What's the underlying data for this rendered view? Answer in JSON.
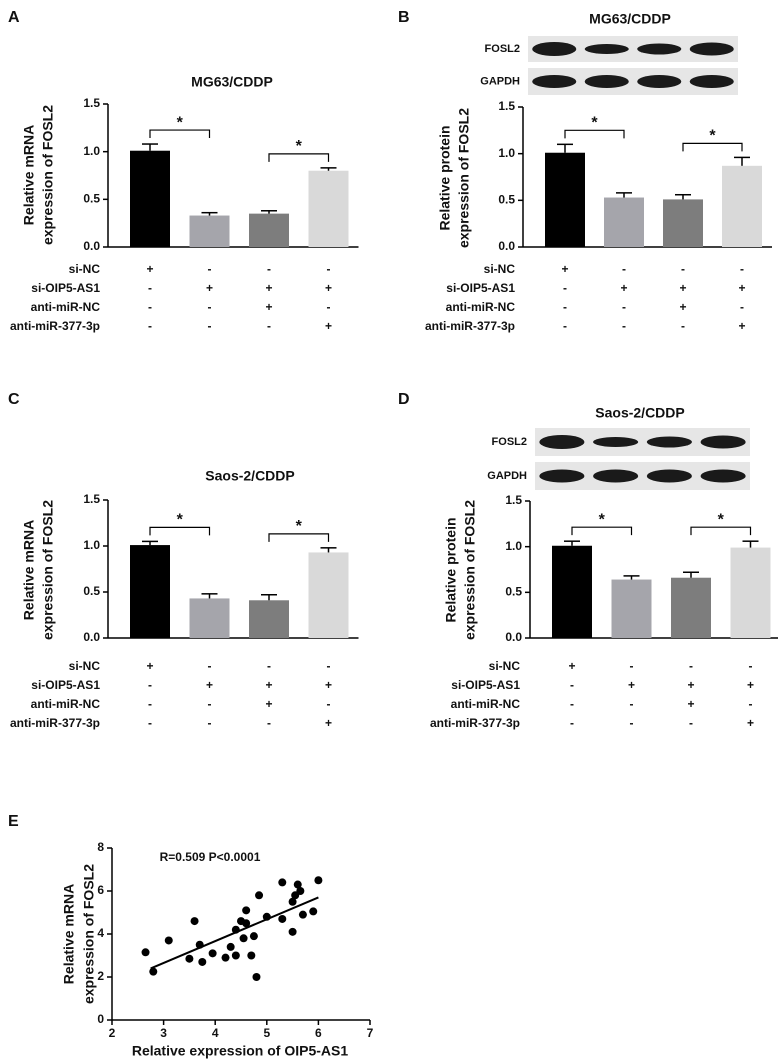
{
  "chart_data": [
    {
      "type": "bar",
      "panel_label": "A",
      "title": "MG63/CDDP",
      "y_label": [
        "Relative mRNA",
        "expression of FOSL2"
      ],
      "values": [
        1.01,
        0.33,
        0.35,
        0.8
      ],
      "errors": [
        0.07,
        0.03,
        0.03,
        0.03
      ],
      "colors": [
        "#000000",
        "#a5a5ab",
        "#7d7d7d",
        "#d9d9d9"
      ],
      "ylim": [
        0,
        1.5
      ],
      "yticks": [
        {
          "value": 0,
          "label": "0.0"
        },
        {
          "value": 0.5,
          "label": "0.5"
        },
        {
          "value": 1,
          "label": "1.0"
        },
        {
          "value": 1.5,
          "label": "1.5"
        }
      ],
      "significance": [
        {
          "from": 0,
          "to": 1,
          "label": "*"
        },
        {
          "from": 2,
          "to": 3,
          "label": "*"
        }
      ],
      "conditions": {
        "rows": [
          "si-NC",
          "si-OIP5-AS1",
          "anti-miR-NC",
          "anti-miR-377-3p"
        ],
        "signs": [
          [
            "+",
            "-",
            "-",
            "-"
          ],
          [
            "-",
            "+",
            "+",
            "+"
          ],
          [
            "-",
            "-",
            "+",
            "-"
          ],
          [
            "-",
            "-",
            "-",
            "+"
          ]
        ]
      }
    },
    {
      "type": "bar",
      "panel_label": "B",
      "title": "MG63/CDDP",
      "blot_labels": [
        "FOSL2",
        "GAPDH"
      ],
      "y_label": [
        "Relative protein",
        "expression of FOSL2"
      ],
      "values": [
        1.01,
        0.53,
        0.51,
        0.87
      ],
      "errors": [
        0.09,
        0.05,
        0.05,
        0.09
      ],
      "colors": [
        "#000000",
        "#a5a5ab",
        "#7d7d7d",
        "#d9d9d9"
      ],
      "ylim": [
        0,
        1.5
      ],
      "yticks": [
        {
          "value": 0,
          "label": "0.0"
        },
        {
          "value": 0.5,
          "label": "0.5"
        },
        {
          "value": 1,
          "label": "1.0"
        },
        {
          "value": 1.5,
          "label": "1.5"
        }
      ],
      "significance": [
        {
          "from": 0,
          "to": 1,
          "label": "*"
        },
        {
          "from": 2,
          "to": 3,
          "label": "*"
        }
      ],
      "conditions": {
        "rows": [
          "si-NC",
          "si-OIP5-AS1",
          "anti-miR-NC",
          "anti-miR-377-3p"
        ],
        "signs": [
          [
            "+",
            "-",
            "-",
            "-"
          ],
          [
            "-",
            "+",
            "+",
            "+"
          ],
          [
            "-",
            "-",
            "+",
            "-"
          ],
          [
            "-",
            "-",
            "-",
            "+"
          ]
        ]
      }
    },
    {
      "type": "bar",
      "panel_label": "C",
      "title": "Saos-2/CDDP",
      "y_label": [
        "Relative mRNA",
        "expression of FOSL2"
      ],
      "values": [
        1.01,
        0.43,
        0.41,
        0.93
      ],
      "errors": [
        0.04,
        0.05,
        0.06,
        0.05
      ],
      "colors": [
        "#000000",
        "#a5a5ab",
        "#7d7d7d",
        "#d9d9d9"
      ],
      "ylim": [
        0,
        1.5
      ],
      "yticks": [
        {
          "value": 0,
          "label": "0.0"
        },
        {
          "value": 0.5,
          "label": "0.5"
        },
        {
          "value": 1,
          "label": "1.0"
        },
        {
          "value": 1.5,
          "label": "1.5"
        }
      ],
      "significance": [
        {
          "from": 0,
          "to": 1,
          "label": "*"
        },
        {
          "from": 2,
          "to": 3,
          "label": "*"
        }
      ],
      "conditions": {
        "rows": [
          "si-NC",
          "si-OIP5-AS1",
          "anti-miR-NC",
          "anti-miR-377-3p"
        ],
        "signs": [
          [
            "+",
            "-",
            "-",
            "-"
          ],
          [
            "-",
            "+",
            "+",
            "+"
          ],
          [
            "-",
            "-",
            "+",
            "-"
          ],
          [
            "-",
            "-",
            "-",
            "+"
          ]
        ]
      }
    },
    {
      "type": "bar",
      "panel_label": "D",
      "title": "Saos-2/CDDP",
      "blot_labels": [
        "FOSL2",
        "GAPDH"
      ],
      "y_label": [
        "Relative protein",
        "expression of FOSL2"
      ],
      "values": [
        1.01,
        0.64,
        0.66,
        0.99
      ],
      "errors": [
        0.05,
        0.04,
        0.06,
        0.07
      ],
      "colors": [
        "#000000",
        "#a5a5ab",
        "#7d7d7d",
        "#d9d9d9"
      ],
      "ylim": [
        0,
        1.5
      ],
      "yticks": [
        {
          "value": 0,
          "label": "0.0"
        },
        {
          "value": 0.5,
          "label": "0.5"
        },
        {
          "value": 1,
          "label": "1.0"
        },
        {
          "value": 1.5,
          "label": "1.5"
        }
      ],
      "significance": [
        {
          "from": 0,
          "to": 1,
          "label": "*"
        },
        {
          "from": 2,
          "to": 3,
          "label": "*"
        }
      ],
      "conditions": {
        "rows": [
          "si-NC",
          "si-OIP5-AS1",
          "anti-miR-NC",
          "anti-miR-377-3p"
        ],
        "signs": [
          [
            "+",
            "-",
            "-",
            "-"
          ],
          [
            "-",
            "+",
            "+",
            "+"
          ],
          [
            "-",
            "-",
            "+",
            "-"
          ],
          [
            "-",
            "-",
            "-",
            "+"
          ]
        ]
      }
    },
    {
      "type": "scatter",
      "panel_label": "E",
      "annotation": "R=0.509  P<0.0001",
      "x_label": "Relative expression of OIP5-AS1",
      "y_label": [
        "Relative mRNA",
        "expression of FOSL2"
      ],
      "x": [
        2.65,
        2.8,
        3.1,
        3.5,
        3.6,
        3.7,
        3.75,
        3.95,
        4.2,
        4.3,
        4.4,
        4.4,
        4.5,
        4.55,
        4.6,
        4.6,
        4.7,
        4.75,
        4.8,
        4.85,
        5.0,
        5.3,
        5.3,
        5.5,
        5.5,
        5.55,
        5.6,
        5.65,
        5.7,
        5.9,
        6.0
      ],
      "y": [
        3.15,
        2.25,
        3.7,
        2.85,
        4.6,
        3.5,
        2.7,
        3.1,
        2.9,
        3.4,
        4.2,
        3.0,
        4.6,
        3.8,
        5.1,
        4.5,
        3.0,
        3.9,
        2.0,
        5.8,
        4.8,
        6.4,
        4.7,
        4.1,
        5.5,
        5.8,
        6.3,
        6.0,
        4.9,
        5.05,
        6.5
      ],
      "color": "#000000",
      "fit_line": {
        "x": [
          2.75,
          6.0
        ],
        "y": [
          2.4,
          5.7
        ]
      },
      "xlim": [
        2,
        7
      ],
      "xticks": [
        2,
        3,
        4,
        5,
        6,
        7
      ],
      "ylim": [
        0,
        8
      ],
      "yticks": [
        0,
        2,
        4,
        6,
        8
      ]
    }
  ]
}
